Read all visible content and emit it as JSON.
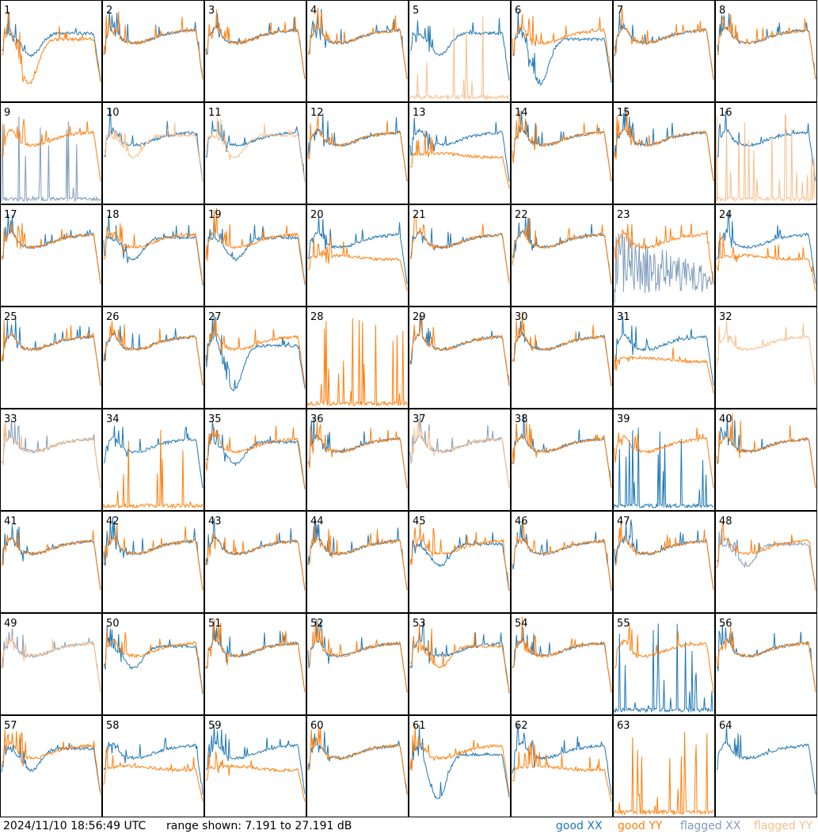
{
  "timestamp": "2024/11/10 18:56:49 UTC",
  "range_text": "range shown: 7.191 to 27.191 dB",
  "legend": {
    "good_xx": "good XX",
    "good_yy": "good YY",
    "flagged_xx": "flagged XX",
    "flagged_yy": "flagged YY"
  },
  "colors": {
    "good_xx": "#1f77b4",
    "good_yy": "#ff7f0e",
    "flagged_xx": "#7f9cbd",
    "flagged_yy": "#f9be8a"
  },
  "chart_data": {
    "type": "line",
    "panels": [
      {
        "id": "1",
        "label": "1",
        "xx": "good",
        "yy": "good",
        "xx_shape": "dip",
        "yy_shape": "deepdip"
      },
      {
        "id": "2",
        "label": "2",
        "xx": "good",
        "yy": "good",
        "xx_shape": "normal",
        "yy_shape": "normal"
      },
      {
        "id": "3",
        "label": "3",
        "xx": "good",
        "yy": "good",
        "xx_shape": "normal",
        "yy_shape": "normal"
      },
      {
        "id": "4",
        "label": "4",
        "xx": "good",
        "yy": "good",
        "xx_shape": "normal",
        "yy_shape": "normal"
      },
      {
        "id": "5",
        "label": "5",
        "xx": "good",
        "yy": "flagged",
        "xx_shape": "dip",
        "yy_shape": "spiky_low"
      },
      {
        "id": "6",
        "label": "6",
        "xx": "good",
        "yy": "good",
        "xx_shape": "deepdip",
        "yy_shape": "normal"
      },
      {
        "id": "7",
        "label": "7",
        "xx": "good",
        "yy": "good",
        "xx_shape": "normal",
        "yy_shape": "normal"
      },
      {
        "id": "8",
        "label": "8",
        "xx": "good",
        "yy": "good",
        "xx_shape": "normal",
        "yy_shape": "normal"
      },
      {
        "id": "9",
        "label": "9",
        "xx": "flagged",
        "yy": "good",
        "xx_shape": "spiky_low",
        "yy_shape": "normal"
      },
      {
        "id": "10",
        "label": "10",
        "xx": "good",
        "yy": "flagged",
        "xx_shape": "normal",
        "yy_shape": "dip"
      },
      {
        "id": "11",
        "label": "11",
        "xx": "good",
        "yy": "flagged",
        "xx_shape": "normal",
        "yy_shape": "dip"
      },
      {
        "id": "12",
        "label": "12",
        "xx": "good",
        "yy": "good",
        "xx_shape": "normal",
        "yy_shape": "normal"
      },
      {
        "id": "13",
        "label": "13",
        "xx": "good",
        "yy": "good",
        "xx_shape": "normal",
        "yy_shape": "low"
      },
      {
        "id": "14",
        "label": "14",
        "xx": "good",
        "yy": "good",
        "xx_shape": "normal",
        "yy_shape": "normal"
      },
      {
        "id": "15",
        "label": "15",
        "xx": "good",
        "yy": "good",
        "xx_shape": "normal",
        "yy_shape": "normal"
      },
      {
        "id": "16",
        "label": "16",
        "xx": "good",
        "yy": "flagged",
        "xx_shape": "normal",
        "yy_shape": "spiky_low"
      },
      {
        "id": "17",
        "label": "17",
        "xx": "good",
        "yy": "good",
        "xx_shape": "normal",
        "yy_shape": "normal"
      },
      {
        "id": "18",
        "label": "18",
        "xx": "good",
        "yy": "good",
        "xx_shape": "dip",
        "yy_shape": "normal"
      },
      {
        "id": "19",
        "label": "19",
        "xx": "good",
        "yy": "good",
        "xx_shape": "dip",
        "yy_shape": "normal"
      },
      {
        "id": "20",
        "label": "20",
        "xx": "good",
        "yy": "good",
        "xx_shape": "normal",
        "yy_shape": "low"
      },
      {
        "id": "21",
        "label": "21",
        "xx": "good",
        "yy": "good",
        "xx_shape": "normal",
        "yy_shape": "normal"
      },
      {
        "id": "22",
        "label": "22",
        "xx": "good",
        "yy": "good",
        "xx_shape": "normal",
        "yy_shape": "normal"
      },
      {
        "id": "23",
        "label": "23",
        "xx": "flagged",
        "yy": "good",
        "xx_shape": "noisy",
        "yy_shape": "normal"
      },
      {
        "id": "24",
        "label": "24",
        "xx": "good",
        "yy": "good",
        "xx_shape": "normal",
        "yy_shape": "low"
      },
      {
        "id": "25",
        "label": "25",
        "xx": "good",
        "yy": "good",
        "xx_shape": "normal",
        "yy_shape": "normal"
      },
      {
        "id": "26",
        "label": "26",
        "xx": "good",
        "yy": "good",
        "xx_shape": "normal",
        "yy_shape": "normal"
      },
      {
        "id": "27",
        "label": "27",
        "xx": "good",
        "yy": "good",
        "xx_shape": "deepdip",
        "yy_shape": "normal"
      },
      {
        "id": "28",
        "label": "28",
        "xx": "flagged",
        "yy": "good",
        "xx_shape": "none",
        "yy_shape": "spiky_low"
      },
      {
        "id": "29",
        "label": "29",
        "xx": "good",
        "yy": "good",
        "xx_shape": "normal",
        "yy_shape": "normal"
      },
      {
        "id": "30",
        "label": "30",
        "xx": "good",
        "yy": "good",
        "xx_shape": "normal",
        "yy_shape": "normal"
      },
      {
        "id": "31",
        "label": "31",
        "xx": "good",
        "yy": "good",
        "xx_shape": "normal",
        "yy_shape": "low"
      },
      {
        "id": "32",
        "label": "32",
        "xx": "flagged",
        "yy": "flagged",
        "xx_shape": "none",
        "yy_shape": "normal"
      },
      {
        "id": "33",
        "label": "33",
        "xx": "flagged",
        "yy": "flagged",
        "xx_shape": "normal",
        "yy_shape": "normal"
      },
      {
        "id": "34",
        "label": "34",
        "xx": "good",
        "yy": "good",
        "xx_shape": "normal",
        "yy_shape": "spiky_low"
      },
      {
        "id": "35",
        "label": "35",
        "xx": "good",
        "yy": "good",
        "xx_shape": "dip",
        "yy_shape": "normal"
      },
      {
        "id": "36",
        "label": "36",
        "xx": "good",
        "yy": "good",
        "xx_shape": "normal",
        "yy_shape": "normal"
      },
      {
        "id": "37",
        "label": "37",
        "xx": "flagged",
        "yy": "flagged",
        "xx_shape": "normal",
        "yy_shape": "normal"
      },
      {
        "id": "38",
        "label": "38",
        "xx": "good",
        "yy": "good",
        "xx_shape": "normal",
        "yy_shape": "normal"
      },
      {
        "id": "39",
        "label": "39",
        "xx": "good",
        "yy": "good",
        "xx_shape": "spiky_low",
        "yy_shape": "normal"
      },
      {
        "id": "40",
        "label": "40",
        "xx": "good",
        "yy": "good",
        "xx_shape": "normal",
        "yy_shape": "normal"
      },
      {
        "id": "41",
        "label": "41",
        "xx": "good",
        "yy": "good",
        "xx_shape": "normal",
        "yy_shape": "normal"
      },
      {
        "id": "42",
        "label": "42",
        "xx": "good",
        "yy": "good",
        "xx_shape": "normal",
        "yy_shape": "normal"
      },
      {
        "id": "43",
        "label": "43",
        "xx": "good",
        "yy": "good",
        "xx_shape": "normal",
        "yy_shape": "normal"
      },
      {
        "id": "44",
        "label": "44",
        "xx": "good",
        "yy": "good",
        "xx_shape": "normal",
        "yy_shape": "normal"
      },
      {
        "id": "45",
        "label": "45",
        "xx": "good",
        "yy": "good",
        "xx_shape": "dip",
        "yy_shape": "normal"
      },
      {
        "id": "46",
        "label": "46",
        "xx": "good",
        "yy": "good",
        "xx_shape": "normal",
        "yy_shape": "normal"
      },
      {
        "id": "47",
        "label": "47",
        "xx": "good",
        "yy": "good",
        "xx_shape": "normal",
        "yy_shape": "normal"
      },
      {
        "id": "48",
        "label": "48",
        "xx": "flagged",
        "yy": "good",
        "xx_shape": "dip",
        "yy_shape": "normal"
      },
      {
        "id": "49",
        "label": "49",
        "xx": "flagged",
        "yy": "flagged",
        "xx_shape": "normal",
        "yy_shape": "normal"
      },
      {
        "id": "50",
        "label": "50",
        "xx": "good",
        "yy": "good",
        "xx_shape": "dip",
        "yy_shape": "normal"
      },
      {
        "id": "51",
        "label": "51",
        "xx": "good",
        "yy": "good",
        "xx_shape": "normal",
        "yy_shape": "normal"
      },
      {
        "id": "52",
        "label": "52",
        "xx": "good",
        "yy": "good",
        "xx_shape": "normal",
        "yy_shape": "normal"
      },
      {
        "id": "53",
        "label": "53",
        "xx": "good",
        "yy": "good",
        "xx_shape": "normal",
        "yy_shape": "dip"
      },
      {
        "id": "54",
        "label": "54",
        "xx": "good",
        "yy": "good",
        "xx_shape": "normal",
        "yy_shape": "normal"
      },
      {
        "id": "55",
        "label": "55",
        "xx": "good",
        "yy": "good",
        "xx_shape": "spiky_low",
        "yy_shape": "normal"
      },
      {
        "id": "56",
        "label": "56",
        "xx": "good",
        "yy": "good",
        "xx_shape": "normal",
        "yy_shape": "normal"
      },
      {
        "id": "57",
        "label": "57",
        "xx": "good",
        "yy": "good",
        "xx_shape": "dip",
        "yy_shape": "normal"
      },
      {
        "id": "58",
        "label": "58",
        "xx": "good",
        "yy": "good",
        "xx_shape": "normal",
        "yy_shape": "low"
      },
      {
        "id": "59",
        "label": "59",
        "xx": "good",
        "yy": "good",
        "xx_shape": "normal",
        "yy_shape": "low"
      },
      {
        "id": "60",
        "label": "60",
        "xx": "good",
        "yy": "good",
        "xx_shape": "normal",
        "yy_shape": "normal"
      },
      {
        "id": "61",
        "label": "61",
        "xx": "good",
        "yy": "good",
        "xx_shape": "deepdip",
        "yy_shape": "normal"
      },
      {
        "id": "62",
        "label": "62",
        "xx": "good",
        "yy": "good",
        "xx_shape": "normal",
        "yy_shape": "low"
      },
      {
        "id": "63",
        "label": "63",
        "xx": "flagged",
        "yy": "good",
        "xx_shape": "none",
        "yy_shape": "spiky_low"
      },
      {
        "id": "64",
        "label": "64",
        "xx": "good",
        "yy": "flagged",
        "xx_shape": "normal",
        "yy_shape": "none"
      }
    ],
    "ylim_db": [
      7.191,
      27.191
    ],
    "grid": false,
    "legend_position": "bottom-right"
  }
}
